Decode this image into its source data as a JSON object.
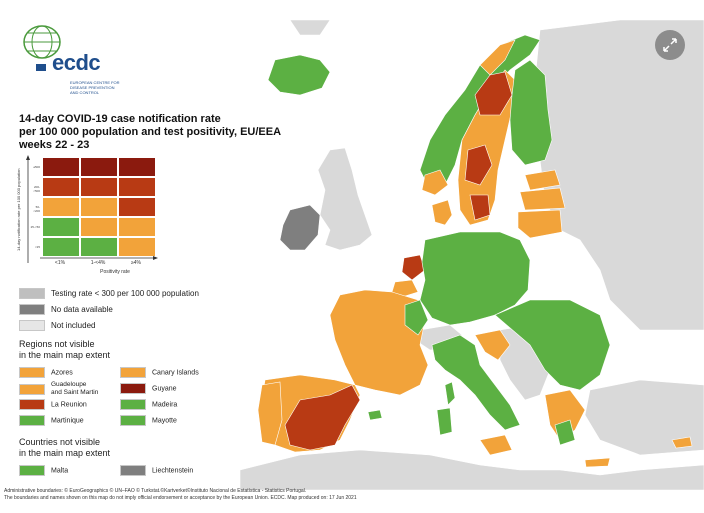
{
  "logo": {
    "name": "ecdc",
    "subtitle": "EUROPEAN CENTRE FOR DISEASE PREVENTION AND CONTROL"
  },
  "title": {
    "line1": "14-day COVID-19 case notification rate",
    "line2": "per 100 000 population and test positivity, EU/EEA",
    "line3": "weeks 22 - 23"
  },
  "matrix": {
    "y_axis_label": "14-day notification rate per 100 000 population",
    "x_axis_label": "Positivity rate",
    "columns": [
      "<1%",
      "1-<4%",
      "≥4%"
    ],
    "rows": [
      "≥500",
      "200-<500",
      "50-<200",
      "25-<50",
      "<25"
    ],
    "colors": [
      [
        "#8b1a0e",
        "#8b1a0e",
        "#8b1a0e"
      ],
      [
        "#b83a14",
        "#b83a14",
        "#b83a14"
      ],
      [
        "#f2a33a",
        "#f2a33a",
        "#b83a14"
      ],
      [
        "#5cb043",
        "#f2a33a",
        "#f2a33a"
      ],
      [
        "#5cb043",
        "#5cb043",
        "#f2a33a"
      ]
    ]
  },
  "legend": {
    "testing_rate": {
      "label": "Testing rate < 300 per 100 000 population",
      "color": "#bfbfbf"
    },
    "no_data": {
      "label": "No data available",
      "color": "#7f7f7f"
    },
    "not_included": {
      "label": "Not included",
      "color": "#e6e6e6"
    }
  },
  "regions_section": {
    "line1": "Regions not visible",
    "line2": "in the main map extent",
    "items": [
      {
        "label": "Azores",
        "color": "#f2a33a"
      },
      {
        "label": "Canary Islands",
        "color": "#f2a33a"
      },
      {
        "label_line1": "Guadeloupe",
        "label_line2": "and Saint Martin",
        "color": "#f2a33a"
      },
      {
        "label": "Guyane",
        "color": "#8b1a0e"
      },
      {
        "label": "La Reunion",
        "color": "#b83a14"
      },
      {
        "label": "Madeira",
        "color": "#5cb043"
      },
      {
        "label": "Martinique",
        "color": "#5cb043"
      },
      {
        "label": "Mayotte",
        "color": "#5cb043"
      }
    ]
  },
  "countries_section": {
    "line1": "Countries not visible",
    "line2": "in the main map extent",
    "items": [
      {
        "label": "Malta",
        "color": "#5cb043"
      },
      {
        "label": "Liechtenstein",
        "color": "#7f7f7f"
      }
    ]
  },
  "footer": {
    "line1": "Administrative boundaries: © EuroGeographics © UN–FAO © Turkstat.©Kartverket©Instituto Nacional de Estatística - Statistics Portugal.",
    "line2": "The boundaries and names shown on this map do not imply official endorsement or acceptance by the European Union. ECDC. Map produced on: 17 Jun 2021"
  },
  "colors": {
    "green": "#5cb043",
    "orange": "#f2a33a",
    "red": "#b83a14",
    "darkred": "#8b1a0e",
    "grey_nodata": "#7f7f7f",
    "grey_outside": "#d9d9d9",
    "sea": "#ffffff"
  },
  "controls": {
    "expand_icon": "expand-icon"
  }
}
